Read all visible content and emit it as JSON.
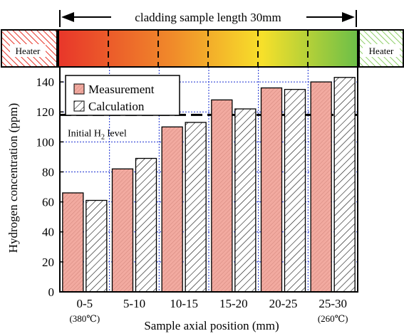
{
  "header": {
    "length_label": "cladding sample length 30mm",
    "heater_left": "Heater",
    "heater_right": "Heater",
    "gradient_colors": [
      "#e8362a",
      "#f08a2a",
      "#f7e02a",
      "#6cbf48"
    ]
  },
  "chart_data": {
    "type": "bar",
    "categories": [
      "0-5",
      "5-10",
      "10-15",
      "15-20",
      "20-25",
      "25-30"
    ],
    "category_notes": [
      "(380℃)",
      "",
      "",
      "",
      "",
      "(260℃)"
    ],
    "series": [
      {
        "name": "Measurement",
        "values": [
          66,
          82,
          110,
          128,
          136,
          140
        ],
        "color": "#f2aaa0",
        "pattern": "fine-hatch"
      },
      {
        "name": "Calculation",
        "values": [
          61,
          89,
          113,
          122,
          135,
          143
        ],
        "color": "#ffffff",
        "pattern": "diagonal-hatch"
      }
    ],
    "xlabel": "Sample axial position (mm)",
    "ylabel": "Hydrogen concentration (ppm)",
    "ylim": [
      0,
      150
    ],
    "yticks": [
      0,
      20,
      40,
      60,
      80,
      100,
      120,
      140
    ],
    "reference_line": {
      "value": 118,
      "label": "Initial H",
      "label_sub": "2",
      "label_tail": " level"
    },
    "grid": true,
    "legend_position": "top-left"
  }
}
